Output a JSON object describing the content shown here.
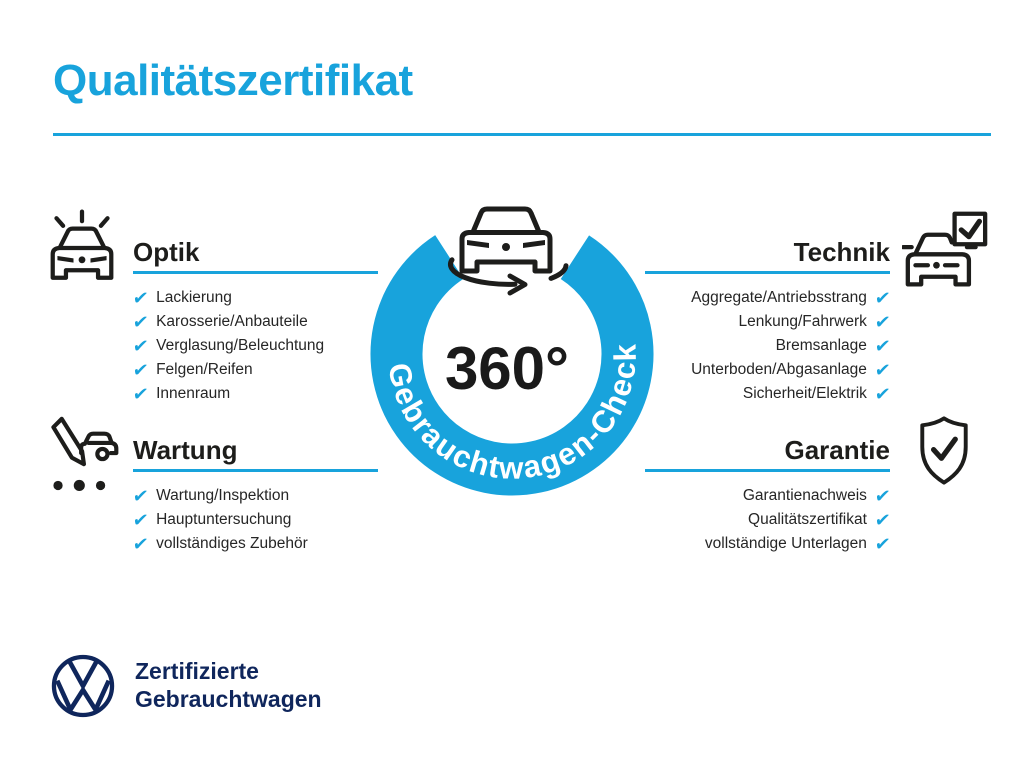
{
  "page": {
    "title": "Qualitätszertifikat",
    "accent_color": "#18a3dc",
    "ink_color": "#1d1d1b",
    "navy_color": "#0f265c"
  },
  "badge": {
    "value": "360°",
    "ring_label": "Gebrauchtwagen-Check",
    "icon": "car-rotate-icon"
  },
  "check_glyph": "✔",
  "sections": [
    {
      "id": "optik",
      "title": "Optik",
      "align": "left",
      "icon": "car-shine-icon",
      "items": [
        "Lackierung",
        "Karosserie/Anbauteile",
        "Verglasung/Beleuchtung",
        "Felgen/Reifen",
        "Innenraum"
      ]
    },
    {
      "id": "technik",
      "title": "Technik",
      "align": "right",
      "icon": "car-checkbox-icon",
      "items": [
        "Aggregate/Antriebsstrang",
        "Lenkung/Fahrwerk",
        "Bremsanlage",
        "Unterboden/Abgasanlage",
        "Sicherheit/Elektrik"
      ]
    },
    {
      "id": "wartung",
      "title": "Wartung",
      "align": "left",
      "icon": "pencil-car-icon",
      "items": [
        "Wartung/Inspektion",
        "Hauptuntersuchung",
        "vollständiges Zubehör"
      ]
    },
    {
      "id": "garantie",
      "title": "Garantie",
      "align": "right",
      "icon": "shield-check-icon",
      "items": [
        "Garantienachweis",
        "Qualitätszertifikat",
        "vollständige Unterlagen"
      ]
    }
  ],
  "footer": {
    "logo": "vw-logo",
    "line1": "Zertifizierte",
    "line2": "Gebrauchtwagen"
  }
}
